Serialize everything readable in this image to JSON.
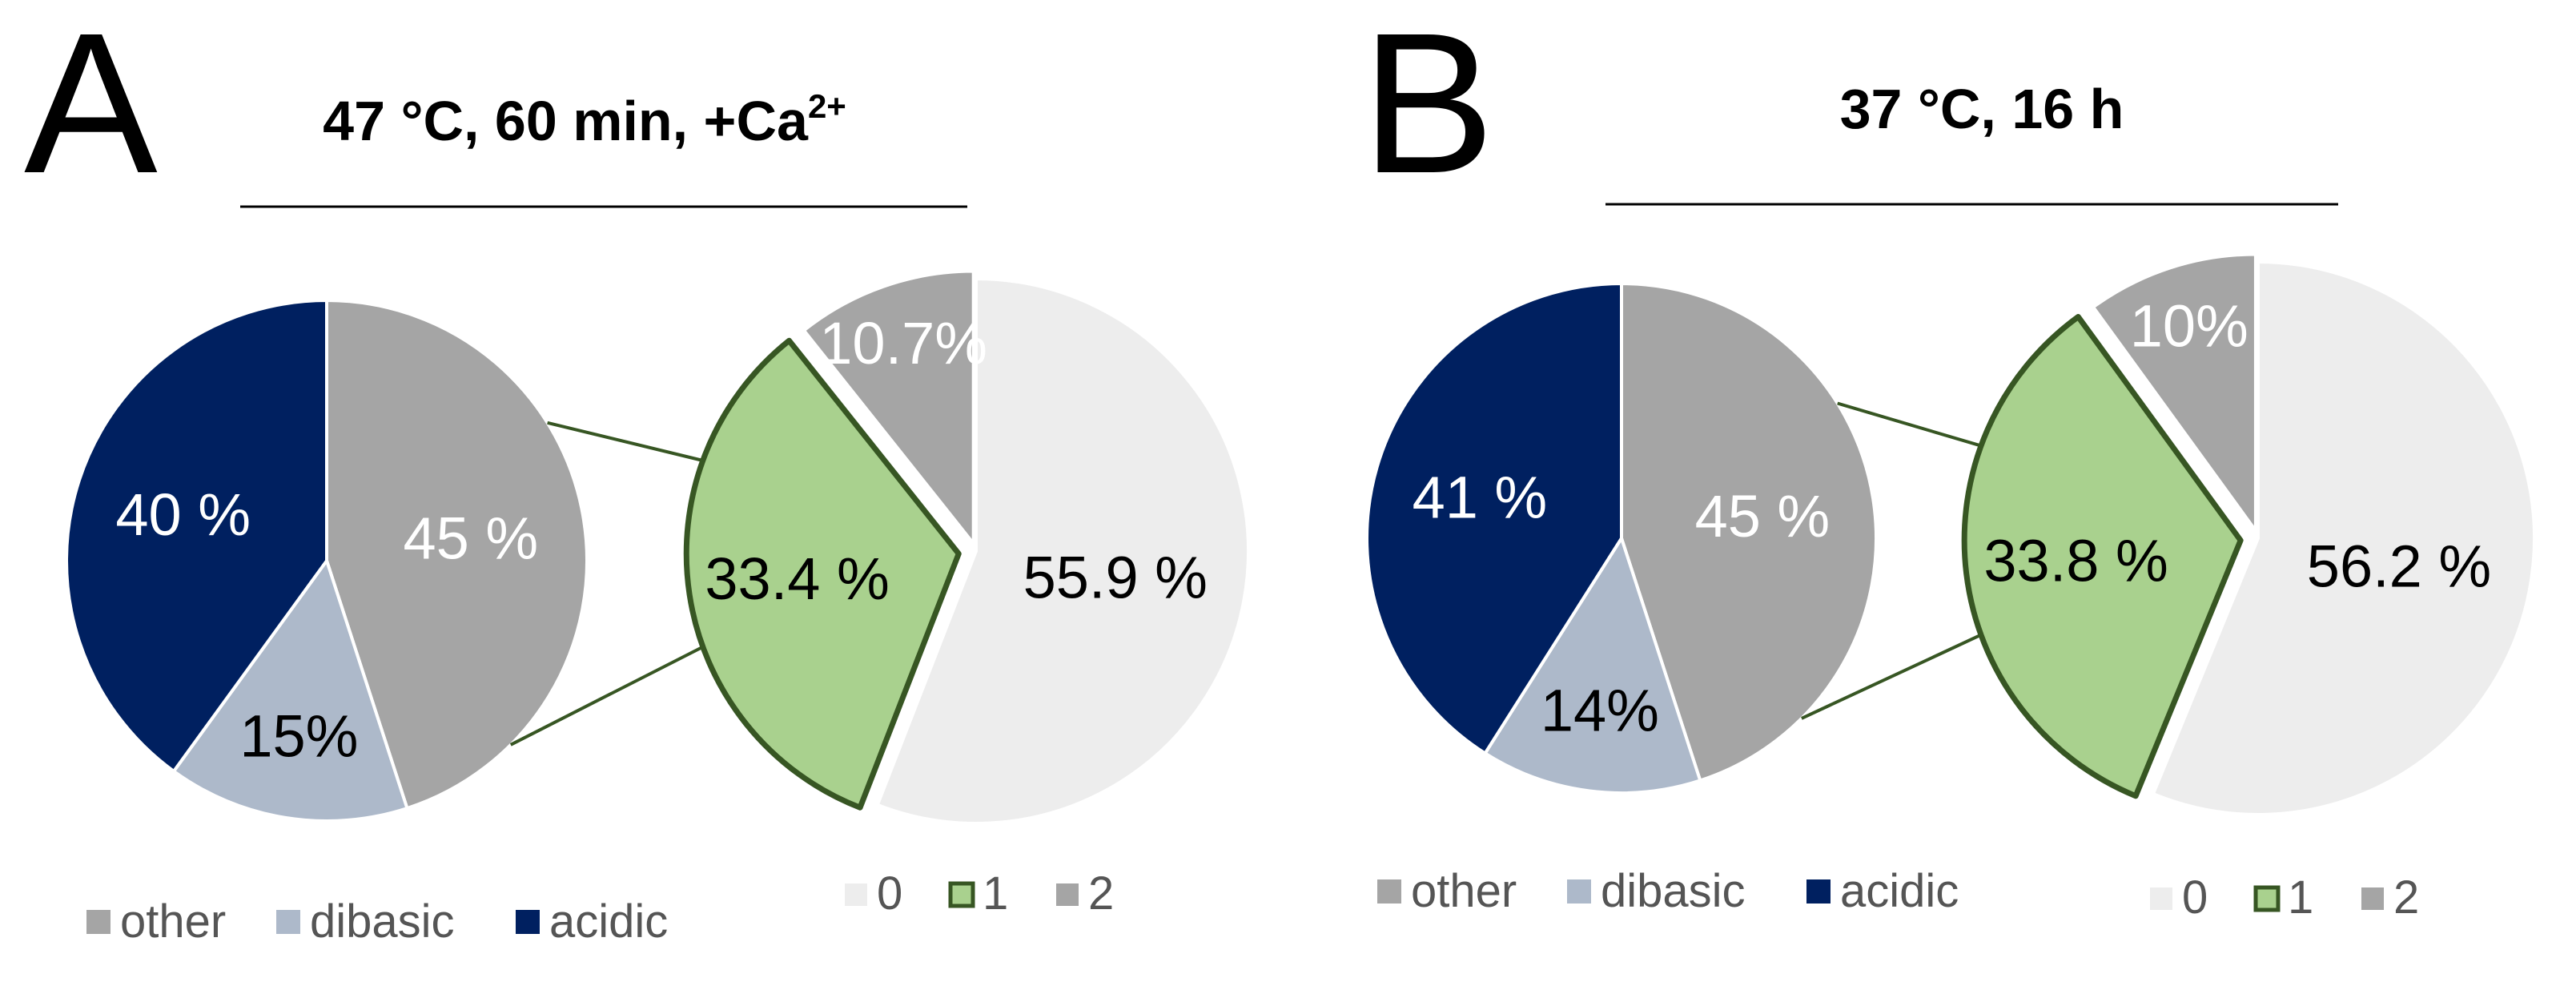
{
  "colors": {
    "other": "#a5a5a5",
    "dibasic": "#adb9ca",
    "acidic": "#002060",
    "zero": "#ededed",
    "one": "#a9d18e",
    "one_edge": "#375623",
    "two": "#a5a5a5",
    "leader": "#375623"
  },
  "chart_data": [
    {
      "type": "pie",
      "panel": "A",
      "title_main": "47 °C, 60 min, +Ca",
      "title_sup": "2+",
      "primary": {
        "slices": [
          {
            "name": "other",
            "value": 45,
            "label": "45 %"
          },
          {
            "name": "dibasic",
            "value": 15,
            "label": "15%"
          },
          {
            "name": "acidic",
            "value": 40,
            "label": "40 %"
          }
        ],
        "legend": [
          "other",
          "dibasic",
          "acidic"
        ]
      },
      "secondary": {
        "slices": [
          {
            "name": "0",
            "value": 55.9,
            "label": "55.9 %"
          },
          {
            "name": "1",
            "value": 33.4,
            "label": "33.4 %"
          },
          {
            "name": "2",
            "value": 10.7,
            "label": "10.7%"
          }
        ],
        "legend": [
          "0",
          "1",
          "2"
        ]
      }
    },
    {
      "type": "pie",
      "panel": "B",
      "title_main": "37 °C, 16 h",
      "title_sup": "",
      "primary": {
        "slices": [
          {
            "name": "other",
            "value": 45,
            "label": "45 %"
          },
          {
            "name": "dibasic",
            "value": 14,
            "label": "14%"
          },
          {
            "name": "acidic",
            "value": 41,
            "label": "41 %"
          }
        ],
        "legend": [
          "other",
          "dibasic",
          "acidic"
        ]
      },
      "secondary": {
        "slices": [
          {
            "name": "0",
            "value": 56.2,
            "label": "56.2 %"
          },
          {
            "name": "1",
            "value": 33.8,
            "label": "33.8 %"
          },
          {
            "name": "2",
            "value": 10,
            "label": "10%"
          }
        ],
        "legend": [
          "0",
          "1",
          "2"
        ]
      }
    }
  ]
}
